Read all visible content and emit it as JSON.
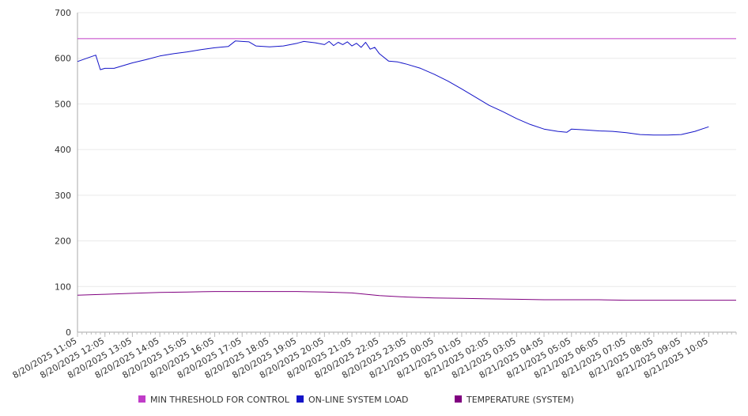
{
  "chart_data": {
    "type": "line",
    "title": "",
    "xlabel": "",
    "ylabel": "",
    "ylim": [
      0,
      700
    ],
    "yticks": [
      0,
      100,
      200,
      300,
      400,
      500,
      600,
      700
    ],
    "grid": true,
    "legend_position": "bottom",
    "x_labels": [
      "8/20/2025 11:05",
      "8/20/2025 12:05",
      "8/20/2025 13:05",
      "8/20/2025 14:05",
      "8/20/2025 15:05",
      "8/20/2025 16:05",
      "8/20/2025 17:05",
      "8/20/2025 18:05",
      "8/20/2025 19:05",
      "8/20/2025 20:05",
      "8/20/2025 21:05",
      "8/20/2025 22:05",
      "8/20/2025 23:05",
      "8/21/2025 00:05",
      "8/21/2025 01:05",
      "8/21/2025 02:05",
      "8/21/2025 03:05",
      "8/21/2025 04:05",
      "8/21/2025 05:05",
      "8/21/2025 06:05",
      "8/21/2025 07:05",
      "8/21/2025 08:05",
      "8/21/2025 09:05",
      "8/21/2025 10:05"
    ],
    "x_range": [
      "8/20/2025 11:05",
      "8/21/2025 11:05"
    ],
    "series": [
      {
        "name": "MIN THRESHOLD FOR CONTROL",
        "color": "#c03cc8",
        "points": [
          [
            "8/20/2025 11:05",
            643
          ],
          [
            "8/21/2025 11:05",
            643
          ]
        ]
      },
      {
        "name": "ON-LINE SYSTEM LOAD",
        "color": "#1414c8",
        "points": [
          [
            "8/20/2025 11:05",
            593
          ],
          [
            "8/20/2025 11:25",
            600
          ],
          [
            "8/20/2025 11:45",
            607
          ],
          [
            "8/20/2025 11:55",
            575
          ],
          [
            "8/20/2025 12:05",
            578
          ],
          [
            "8/20/2025 12:25",
            578
          ],
          [
            "8/20/2025 13:05",
            590
          ],
          [
            "8/20/2025 13:35",
            597
          ],
          [
            "8/20/2025 14:05",
            605
          ],
          [
            "8/20/2025 14:35",
            610
          ],
          [
            "8/20/2025 15:05",
            614
          ],
          [
            "8/20/2025 15:35",
            619
          ],
          [
            "8/20/2025 16:05",
            623
          ],
          [
            "8/20/2025 16:35",
            626
          ],
          [
            "8/20/2025 16:50",
            638
          ],
          [
            "8/20/2025 17:05",
            637
          ],
          [
            "8/20/2025 17:20",
            636
          ],
          [
            "8/20/2025 17:35",
            627
          ],
          [
            "8/20/2025 18:05",
            625
          ],
          [
            "8/20/2025 18:35",
            627
          ],
          [
            "8/20/2025 19:05",
            633
          ],
          [
            "8/20/2025 19:20",
            637
          ],
          [
            "8/20/2025 19:45",
            634
          ],
          [
            "8/20/2025 20:05",
            630
          ],
          [
            "8/20/2025 20:15",
            637
          ],
          [
            "8/20/2025 20:25",
            628
          ],
          [
            "8/20/2025 20:35",
            635
          ],
          [
            "8/20/2025 20:45",
            630
          ],
          [
            "8/20/2025 20:55",
            636
          ],
          [
            "8/20/2025 21:05",
            627
          ],
          [
            "8/20/2025 21:15",
            633
          ],
          [
            "8/20/2025 21:25",
            624
          ],
          [
            "8/20/2025 21:35",
            635
          ],
          [
            "8/20/2025 21:45",
            620
          ],
          [
            "8/20/2025 21:55",
            624
          ],
          [
            "8/20/2025 22:05",
            610
          ],
          [
            "8/20/2025 22:25",
            594
          ],
          [
            "8/20/2025 22:45",
            592
          ],
          [
            "8/20/2025 23:05",
            587
          ],
          [
            "8/20/2025 23:35",
            578
          ],
          [
            "8/21/2025 00:05",
            565
          ],
          [
            "8/21/2025 00:35",
            550
          ],
          [
            "8/21/2025 01:05",
            533
          ],
          [
            "8/21/2025 01:35",
            515
          ],
          [
            "8/21/2025 02:05",
            497
          ],
          [
            "8/21/2025 02:35",
            483
          ],
          [
            "8/21/2025 03:05",
            468
          ],
          [
            "8/21/2025 03:35",
            455
          ],
          [
            "8/21/2025 04:05",
            445
          ],
          [
            "8/21/2025 04:35",
            440
          ],
          [
            "8/21/2025 04:55",
            438
          ],
          [
            "8/21/2025 05:05",
            445
          ],
          [
            "8/21/2025 05:35",
            443
          ],
          [
            "8/21/2025 06:05",
            441
          ],
          [
            "8/21/2025 06:35",
            440
          ],
          [
            "8/21/2025 07:05",
            437
          ],
          [
            "8/21/2025 07:35",
            433
          ],
          [
            "8/21/2025 08:05",
            432
          ],
          [
            "8/21/2025 08:35",
            432
          ],
          [
            "8/21/2025 09:05",
            433
          ],
          [
            "8/21/2025 09:35",
            440
          ],
          [
            "8/21/2025 10:05",
            450
          ]
        ]
      },
      {
        "name": "TEMPERATURE (SYSTEM)",
        "color": "#800080",
        "points": [
          [
            "8/20/2025 11:05",
            81
          ],
          [
            "8/20/2025 12:05",
            83
          ],
          [
            "8/20/2025 13:05",
            85
          ],
          [
            "8/20/2025 14:05",
            87
          ],
          [
            "8/20/2025 15:05",
            88
          ],
          [
            "8/20/2025 16:05",
            89
          ],
          [
            "8/20/2025 17:05",
            89
          ],
          [
            "8/20/2025 18:05",
            89
          ],
          [
            "8/20/2025 19:05",
            89
          ],
          [
            "8/20/2025 20:05",
            88
          ],
          [
            "8/20/2025 21:05",
            86
          ],
          [
            "8/20/2025 22:05",
            80
          ],
          [
            "8/20/2025 23:05",
            77
          ],
          [
            "8/21/2025 00:05",
            75
          ],
          [
            "8/21/2025 01:05",
            74
          ],
          [
            "8/21/2025 02:05",
            73
          ],
          [
            "8/21/2025 03:05",
            72
          ],
          [
            "8/21/2025 04:05",
            71
          ],
          [
            "8/21/2025 05:05",
            71
          ],
          [
            "8/21/2025 06:05",
            71
          ],
          [
            "8/21/2025 07:05",
            70
          ],
          [
            "8/21/2025 08:05",
            70
          ],
          [
            "8/21/2025 09:05",
            70
          ],
          [
            "8/21/2025 10:05",
            70
          ],
          [
            "8/21/2025 11:05",
            70
          ]
        ]
      }
    ]
  }
}
